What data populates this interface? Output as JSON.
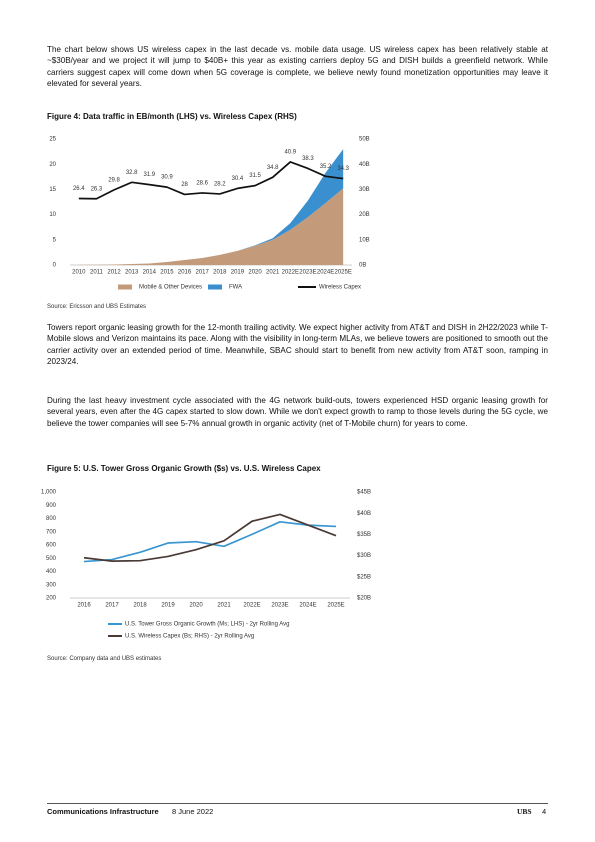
{
  "paragraphs": [
    "The chart below shows US wireless capex in the last decade vs. mobile data usage. US wireless capex has been relatively stable at ~$30B/year and we project it will jump to $40B+ this year as existing carriers deploy 5G and DISH builds a greenfield network. While carriers suggest capex will come down when 5G coverage is complete, we believe newly found monetization opportunities may leave it elevated for several years.",
    "Towers report organic leasing growth for the 12-month trailing activity. We expect higher activity from AT&T and DISH in 2H22/2023 while T-Mobile slows and Verizon maintains its pace. Along with the visibility in long-term MLAs, we believe towers are positioned to smooth out the carrier activity over an extended period of time. Meanwhile, SBAC should start to benefit from new activity from AT&T soon, ramping in 2023/24.",
    "During the last heavy investment cycle associated with the 4G network build-outs, towers experienced HSD organic leasing growth for several years, even after the 4G capex started to slow down. While we don't expect growth to ramp to those levels during the 5G cycle, we believe the tower companies will see 5-7% annual growth in organic activity (net of T-Mobile churn) for years to come."
  ],
  "figures": [
    {
      "title": "Figure 4: Data traffic in EB/month (LHS) vs. Wireless Capex (RHS)",
      "source": "Source: Ericsson and UBS Estimates"
    },
    {
      "title": "Figure 5: U.S. Tower Gross Organic Growth ($s) vs. U.S. Wireless Capex",
      "source": "Source: Company data and UBS estimates"
    }
  ],
  "footer": {
    "title": "Communications Infrastructure",
    "date": "8 June 2022",
    "brand": "UBS",
    "page": "4"
  },
  "chart_data": [
    {
      "type": "area",
      "categories": [
        "2010",
        "2011",
        "2012",
        "2013",
        "2014",
        "2015",
        "2016",
        "2017",
        "2018",
        "2019",
        "2020",
        "2021",
        "2022E",
        "2023E",
        "2024E",
        "2025E"
      ],
      "ylim": [
        0,
        25
      ],
      "yticks": [
        0,
        5,
        10,
        15,
        20,
        25
      ],
      "y2lim": [
        0,
        50
      ],
      "y2ticks": [
        {
          "value": 0,
          "label": "0B"
        },
        {
          "value": 10,
          "label": "10B"
        },
        {
          "value": 20,
          "label": "20B"
        },
        {
          "value": 30,
          "label": "30B"
        },
        {
          "value": 40,
          "label": "40B"
        },
        {
          "value": 50,
          "label": "50B"
        }
      ],
      "legend": "bottom",
      "series": [
        {
          "name": "Mobile & Other Devices",
          "color": "#c49b7a",
          "values": [
            0.02,
            0.05,
            0.1,
            0.2,
            0.3,
            0.6,
            1.0,
            1.4,
            2.0,
            2.8,
            3.8,
            5.0,
            7.0,
            9.5,
            12.3,
            15.2
          ]
        },
        {
          "name": "FWA",
          "color": "#3a8fcf",
          "values": [
            0,
            0,
            0,
            0,
            0,
            0,
            0,
            0,
            0,
            0,
            0.1,
            0.3,
            1.3,
            3.3,
            6.0,
            7.8
          ]
        },
        {
          "name": "Wireless Capex",
          "color": "#111111",
          "type": "line",
          "axis": "y2",
          "data_labels": true,
          "values": [
            26.4,
            26.3,
            29.8,
            32.8,
            31.9,
            30.9,
            28.0,
            28.6,
            28.2,
            30.4,
            31.5,
            34.8,
            40.9,
            38.3,
            35.2,
            34.3
          ]
        }
      ]
    },
    {
      "type": "line",
      "categories": [
        "2016",
        "2017",
        "2018",
        "2019",
        "2020",
        "2021",
        "2022E",
        "2023E",
        "2024E",
        "2025E"
      ],
      "ylim": [
        200,
        1000
      ],
      "yticks": [
        200,
        300,
        400,
        500,
        600,
        700,
        800,
        900,
        {
          "value": 1000,
          "label": "1,000"
        }
      ],
      "y2lim": [
        20,
        45
      ],
      "y2ticks": [
        {
          "value": 20,
          "label": "$20B"
        },
        {
          "value": 25,
          "label": "$25B"
        },
        {
          "value": 30,
          "label": "$30B"
        },
        {
          "value": 35,
          "label": "$35B"
        },
        {
          "value": 40,
          "label": "$40B"
        },
        {
          "value": 45,
          "label": "$45B"
        }
      ],
      "legend": "bottom-left",
      "series": [
        {
          "name": "U.S. Tower Gross Organic Growth (Ms; LHS) - 2yr Rolling Avg",
          "color": "#3a96d0",
          "values": [
            475,
            490,
            545,
            615,
            625,
            590,
            680,
            775,
            750,
            740
          ]
        },
        {
          "name": "U.S. Wireless Capex (Bs; RHS) - 2yr Rolling Avg",
          "color": "#4a3a35",
          "axis": "y2",
          "values": [
            29.5,
            28.7,
            28.8,
            29.8,
            31.4,
            33.5,
            38.1,
            39.7,
            37.2,
            34.7
          ]
        }
      ]
    }
  ]
}
